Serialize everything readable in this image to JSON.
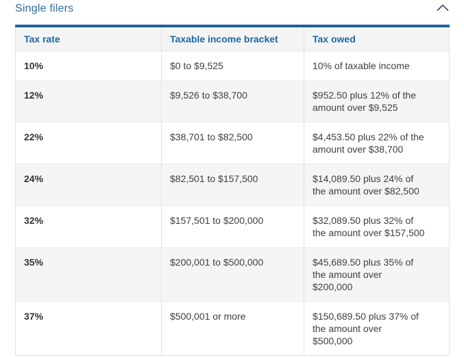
{
  "colors": {
    "accent": "#1b629f",
    "title_text": "#2d6e9e",
    "header_text": "#1a68a2",
    "body_text": "#3e3e3e",
    "header_bg": "#f4f4f4",
    "row_alt_bg": "#f5f5f5",
    "border": "#e0e0e0",
    "chevron": "#2c4a66"
  },
  "section": {
    "title": "Single filers",
    "collapse_icon": "chevron-up-icon",
    "state": "expanded"
  },
  "table": {
    "columns": [
      "Tax rate",
      "Taxable income bracket",
      "Tax owed"
    ],
    "rows": [
      {
        "rate": "10%",
        "bracket": "$0 to $9,525",
        "owed": "10% of taxable income"
      },
      {
        "rate": "12%",
        "bracket": "$9,526 to $38,700",
        "owed": "$952.50 plus 12% of the\namount over $9,525"
      },
      {
        "rate": "22%",
        "bracket": "$38,701 to $82,500",
        "owed": "$4,453.50 plus 22% of the\namount over $38,700"
      },
      {
        "rate": "24%",
        "bracket": "$82,501 to $157,500",
        "owed": "$14,089.50 plus 24% of\nthe amount over $82,500"
      },
      {
        "rate": "32%",
        "bracket": "$157,501 to $200,000",
        "owed": "$32,089.50 plus 32% of\nthe amount over $157,500"
      },
      {
        "rate": "35%",
        "bracket": "$200,001 to $500,000",
        "owed": "$45,689.50 plus 35% of\nthe amount over\n$200,000"
      },
      {
        "rate": "37%",
        "bracket": "$500,001 or more",
        "owed": "$150,689.50 plus 37% of\nthe amount over\n$500,000"
      }
    ]
  }
}
